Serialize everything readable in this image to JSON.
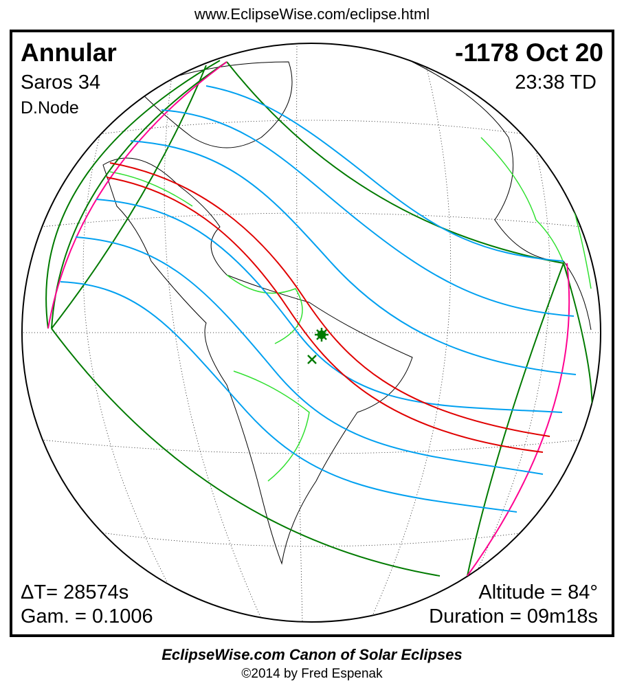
{
  "header": {
    "url": "www.EclipseWise.com/eclipse.html"
  },
  "eclipse": {
    "type": "Annular",
    "date": "-1178 Oct 20",
    "saros": "Saros  34",
    "time": "23:38 TD",
    "node": "D.Node",
    "delta_t": "ΔT=  28574s",
    "gamma": "Gam. = 0.1006",
    "altitude": "Altitude = 84°",
    "duration": "Duration = 09m18s"
  },
  "map": {
    "colors": {
      "central_path": "#e00000",
      "penumbral_limits": "#007a00",
      "magnitude_lines": "#00a0f0",
      "rise_set": "#ff0090",
      "borders": "#30e030",
      "coast": "#000000",
      "grid": "#000000"
    },
    "markers": [
      "greatest-eclipse-star-icon",
      "greatest-duration-x-icon"
    ]
  },
  "footer": {
    "title": "EclipseWise.com Canon of Solar Eclipses",
    "copyright": "©2014 by Fred Espenak"
  }
}
